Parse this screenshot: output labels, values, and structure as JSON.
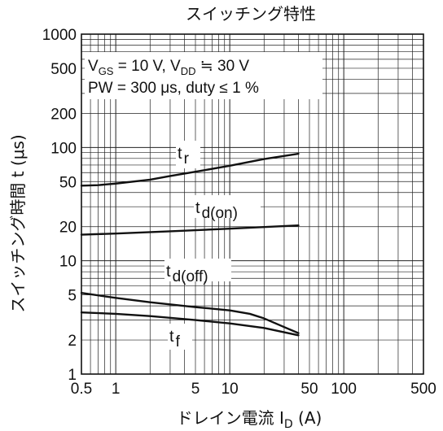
{
  "chart_data": {
    "type": "line",
    "title": "スイッチング特性",
    "xlabel": {
      "prefix": "ドレイン電流",
      "sym": "I",
      "sub": "D",
      "unit": "(A)"
    },
    "ylabel": "スイッチング時間 t (μs)",
    "x_scale": "log",
    "y_scale": "log",
    "xlim": [
      0.5,
      500
    ],
    "ylim": [
      1,
      1000
    ],
    "x_ticks": [
      0.5,
      1,
      5,
      10,
      50,
      100,
      500
    ],
    "x_tick_labels": [
      "0.5",
      "1",
      "5",
      "10",
      "50",
      "100",
      "500"
    ],
    "y_ticks": [
      1,
      2,
      5,
      10,
      20,
      50,
      100,
      200,
      500,
      1000
    ],
    "y_tick_labels": [
      "1",
      "2",
      "5",
      "10",
      "20",
      "50",
      "100",
      "200",
      "500",
      "1000"
    ],
    "grid": true,
    "conditions": {
      "line1": {
        "v": "V",
        "v_sub": "GS",
        "eq1": " = 10 V,  V",
        "v2_sub": "DD",
        "rest": " ≒ 30 V"
      },
      "line2": "PW = 300 μs,  duty ≤ 1 %"
    },
    "series": [
      {
        "name": "tr",
        "label_main": "t",
        "label_sub": "r",
        "x": [
          0.5,
          0.7,
          1,
          2,
          3,
          5,
          10,
          20,
          40
        ],
        "y": [
          46,
          46.5,
          48,
          52,
          56,
          61,
          69,
          79,
          88
        ]
      },
      {
        "name": "td(on)",
        "label_main": "t",
        "label_sub": "d(on)",
        "x": [
          0.5,
          1,
          3,
          10,
          40
        ],
        "y": [
          17,
          17.4,
          18.2,
          19.2,
          20.5
        ]
      },
      {
        "name": "td(off)",
        "label_main": "t",
        "label_sub": "d(off)",
        "x": [
          0.5,
          1,
          2,
          5,
          10,
          15,
          20,
          30,
          40
        ],
        "y": [
          5.2,
          4.7,
          4.3,
          3.9,
          3.65,
          3.4,
          3.1,
          2.6,
          2.3
        ]
      },
      {
        "name": "tf",
        "label_main": "t",
        "label_sub": "f",
        "x": [
          0.5,
          1,
          2,
          5,
          10,
          20,
          40
        ],
        "y": [
          3.5,
          3.4,
          3.25,
          3.0,
          2.8,
          2.55,
          2.2
        ]
      }
    ]
  }
}
